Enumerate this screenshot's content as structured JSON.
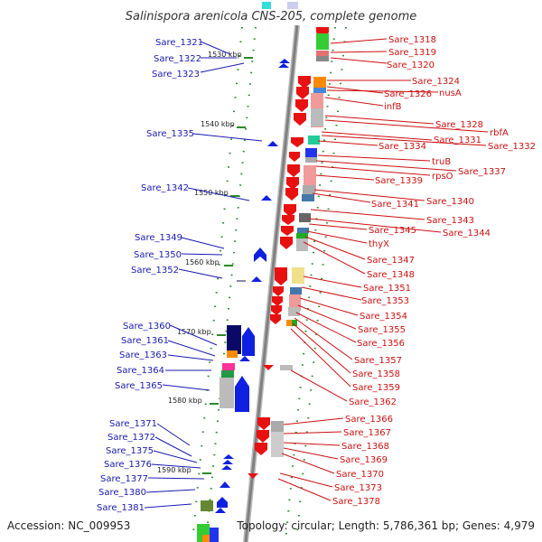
{
  "title": "Salinispora arenicola CNS-205, complete genome",
  "footer": {
    "accession": "Accession: NC_009953",
    "stats": "Topology: circular; Length: 5,786,361 bp; Genes: 4,979"
  },
  "kbp_ticks": [
    "1530 kbp",
    "1540 kbp",
    "1550 kbp",
    "1560 kbp",
    "1570 kbp",
    "1580 kbp",
    "1590 kbp"
  ],
  "left_labels": [
    "Sare_1321",
    "Sare_1322",
    "Sare_1323",
    "Sare_1335",
    "Sare_1342",
    "Sare_1349",
    "Sare_1350",
    "Sare_1352",
    "Sare_1360",
    "Sare_1361",
    "Sare_1363",
    "Sare_1364",
    "Sare_1365",
    "Sare_1371",
    "Sare_1372",
    "Sare_1375",
    "Sare_1376",
    "Sare_1377",
    "Sare_1380",
    "Sare_1381"
  ],
  "right_labels": [
    "Sare_1318",
    "Sare_1319",
    "Sare_1320",
    "Sare_1324",
    "Sare_1326",
    "nusA",
    "infB",
    "Sare_1328",
    "rbfA",
    "Sare_1331",
    "Sare_1332",
    "Sare_1334",
    "truB",
    "Sare_1337",
    "rpsO",
    "Sare_1339",
    "Sare_1340",
    "Sare_1341",
    "Sare_1343",
    "Sare_1344",
    "Sare_1345",
    "thyX",
    "Sare_1347",
    "Sare_1348",
    "Sare_1351",
    "Sare_1353",
    "Sare_1354",
    "Sare_1355",
    "Sare_1356",
    "Sare_1357",
    "Sare_1358",
    "Sare_1359",
    "Sare_1362",
    "Sare_1366",
    "Sare_1367",
    "Sare_1368",
    "Sare_1369",
    "Sare_1370",
    "Sare_1373",
    "Sare_1378"
  ],
  "colors": {
    "forward": "#e81010",
    "reverse": "#1020e0",
    "left_text": "#1a1ab0",
    "right_text": "#cc1111",
    "backbone": "#909090",
    "dots": "#2a8a2a"
  }
}
